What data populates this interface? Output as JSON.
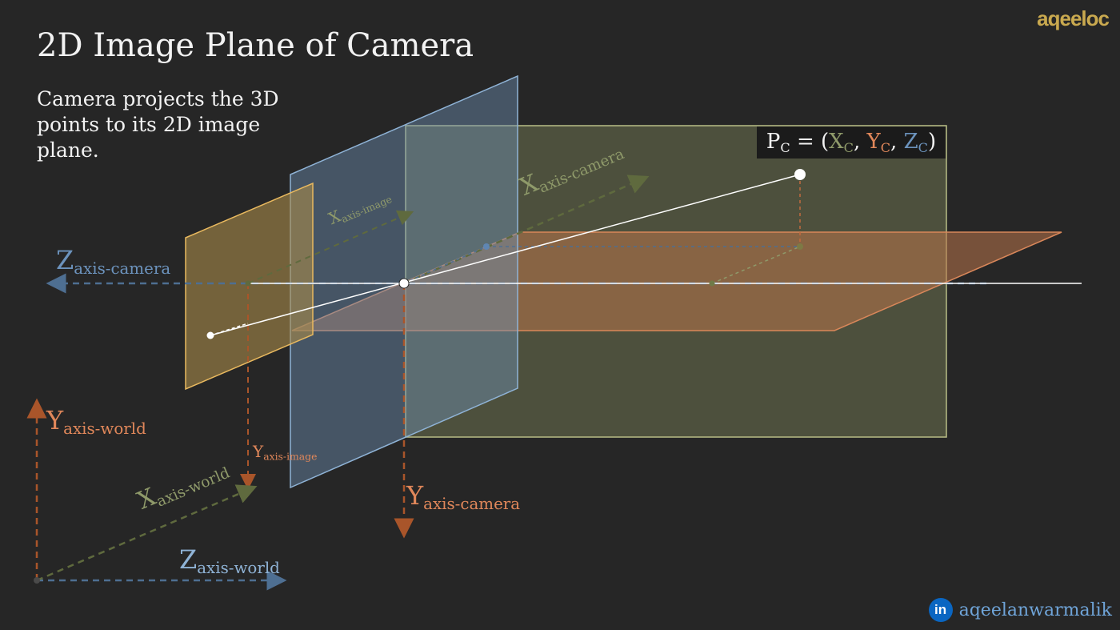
{
  "title": "2D Image Plane of Camera",
  "subtitle": "Camera projects the 3D points to its 2D image plane.",
  "point_label": {
    "p": "P",
    "p_sub": "C",
    "eq": " = (",
    "x": "X",
    "x_sub": "C",
    "comma1": ", ",
    "y": "Y",
    "y_sub": "C",
    "comma2": ", ",
    "z": "Z",
    "z_sub": "C",
    "close": ")"
  },
  "axis_labels": {
    "z_camera": {
      "main": "Z",
      "sub": "axis-camera"
    },
    "x_camera": {
      "main": "X",
      "sub": "axis-camera"
    },
    "y_camera": {
      "main": "Y",
      "sub": "axis-camera"
    },
    "x_image": {
      "main": "X",
      "sub": "axis-image"
    },
    "y_image": {
      "main": "Y",
      "sub": "axis-image"
    },
    "x_world": {
      "main": "X",
      "sub": "axis-world"
    },
    "y_world": {
      "main": "Y",
      "sub": "axis-world"
    },
    "z_world": {
      "main": "Z",
      "sub": "axis-world"
    }
  },
  "footer": {
    "handle": "aqeelanwarmalik",
    "linkedin_icon": "in"
  },
  "logo": {
    "text": "aqeeloc"
  },
  "colors": {
    "background": "#262626",
    "x_axis": "#8f9a6a",
    "y_axis": "#e0875a",
    "z_axis": "#6c93bd",
    "image_plane": "#e9b95f",
    "principal_plane": "#8fb3d6",
    "point_plane": "#c2c48c",
    "ground_plane": "#d9875a"
  }
}
